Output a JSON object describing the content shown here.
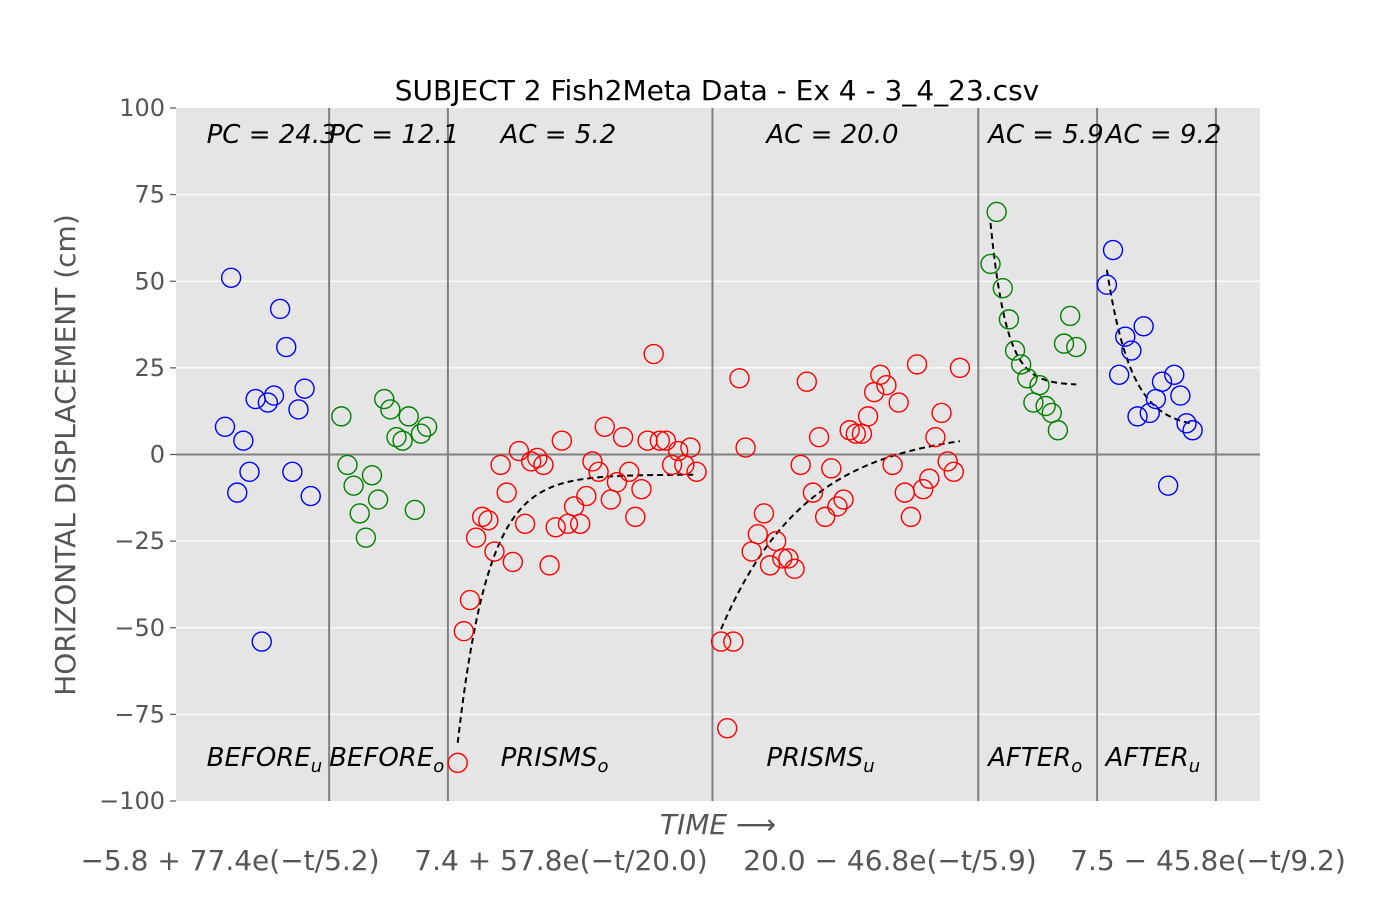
{
  "chart_data": {
    "type": "scatter",
    "title": "SUBJECT 2 Fish2Meta Data - Ex 4 - 3_4_23.csv",
    "ylabel": "HORIZONTAL DISPLACEMENT (cm)",
    "xlabel": "TIME ⟶",
    "ylim": [
      -100,
      100
    ],
    "xlim": [
      0,
      88.5
    ],
    "yticks": [
      100,
      75,
      50,
      25,
      0,
      -25,
      -50,
      -75,
      -100
    ],
    "ytick_labels": [
      "100",
      "75",
      "50",
      "25",
      "0",
      "−25",
      "−50",
      "−75",
      "−100"
    ],
    "grid": true,
    "phase_boundaries": [
      12.5,
      22.2,
      43.8,
      65.5,
      75.2,
      84.9
    ],
    "formulas": [
      "−5.8 + 77.4e(−t/5.2)",
      "7.4 + 57.8e(−t/20.0)",
      "20.0 − 46.8e(−t/5.9)",
      "7.5 − 45.8e(−t/9.2)"
    ],
    "phases": [
      {
        "label": "BEFORE",
        "sub": "u",
        "metric_label": "PC = 24.3",
        "color": "#0000ff",
        "label_x": 2.5,
        "points": [
          [
            4,
            8
          ],
          [
            4.5,
            51
          ],
          [
            5,
            -11
          ],
          [
            5.5,
            4
          ],
          [
            6,
            -5
          ],
          [
            6.5,
            16
          ],
          [
            7,
            -54
          ],
          [
            7.5,
            15
          ],
          [
            8,
            17
          ],
          [
            8.5,
            42
          ],
          [
            9,
            31
          ],
          [
            9.5,
            -5
          ],
          [
            10,
            13
          ],
          [
            10.5,
            19
          ],
          [
            11,
            -12
          ]
        ]
      },
      {
        "label": "BEFORE",
        "sub": "o",
        "metric_label": "PC = 12.1",
        "color": "#008000",
        "label_x": 12.5,
        "points": [
          [
            13.5,
            11
          ],
          [
            14,
            -3
          ],
          [
            14.5,
            -9
          ],
          [
            15,
            -17
          ],
          [
            15.5,
            -24
          ],
          [
            16,
            -6
          ],
          [
            16.5,
            -13
          ],
          [
            17,
            16
          ],
          [
            17.5,
            13
          ],
          [
            18,
            5
          ],
          [
            18.5,
            4
          ],
          [
            19,
            11
          ],
          [
            19.5,
            -16
          ],
          [
            20,
            6
          ],
          [
            20.5,
            8
          ]
        ]
      },
      {
        "label": "PRISMS",
        "sub": "o",
        "metric_label": "AC = 5.2",
        "color": "#ff0000",
        "label_x": 26.5,
        "points": [
          [
            23,
            -89
          ],
          [
            23.5,
            -51
          ],
          [
            24,
            -42
          ],
          [
            24.5,
            -24
          ],
          [
            25,
            -18
          ],
          [
            25.5,
            -19
          ],
          [
            26,
            -28
          ],
          [
            26.5,
            -3
          ],
          [
            27,
            -11
          ],
          [
            27.5,
            -31
          ],
          [
            28,
            1
          ],
          [
            28.5,
            -20
          ],
          [
            29,
            -2
          ],
          [
            29.5,
            -1
          ],
          [
            30,
            -3
          ],
          [
            30.5,
            -32
          ],
          [
            31,
            -21
          ],
          [
            31.5,
            4
          ],
          [
            32,
            -20
          ],
          [
            32.5,
            -15
          ],
          [
            33,
            -20
          ],
          [
            33.5,
            -12
          ],
          [
            34,
            -2
          ],
          [
            34.5,
            -5
          ],
          [
            35,
            8
          ],
          [
            35.5,
            -13
          ],
          [
            36,
            -8
          ],
          [
            36.5,
            5
          ],
          [
            37,
            -5
          ],
          [
            37.5,
            -18
          ],
          [
            38,
            -10
          ],
          [
            38.5,
            4
          ],
          [
            39,
            29
          ],
          [
            39.5,
            4
          ],
          [
            40,
            4
          ],
          [
            40.5,
            -3
          ],
          [
            41,
            1
          ],
          [
            41.5,
            -3
          ],
          [
            42,
            2
          ],
          [
            42.5,
            -5
          ]
        ]
      },
      {
        "label": "PRISMS",
        "sub": "u",
        "metric_label": "AC = 20.0",
        "color": "#ff0000",
        "label_x": 48.2,
        "points": [
          [
            44.5,
            -54
          ],
          [
            45,
            -79
          ],
          [
            45.5,
            -54
          ],
          [
            46,
            22
          ],
          [
            46.5,
            2
          ],
          [
            47,
            -28
          ],
          [
            47.5,
            -23
          ],
          [
            48,
            -17
          ],
          [
            48.5,
            -32
          ],
          [
            49,
            -25
          ],
          [
            49.5,
            -30
          ],
          [
            50,
            -30
          ],
          [
            50.5,
            -33
          ],
          [
            51,
            -3
          ],
          [
            51.5,
            21
          ],
          [
            52,
            -11
          ],
          [
            52.5,
            5
          ],
          [
            53,
            -18
          ],
          [
            53.5,
            -4
          ],
          [
            54,
            -15
          ],
          [
            54.5,
            -13
          ],
          [
            55,
            7
          ],
          [
            55.5,
            6
          ],
          [
            56,
            6
          ],
          [
            56.5,
            11
          ],
          [
            57,
            18
          ],
          [
            57.5,
            23
          ],
          [
            58,
            20
          ],
          [
            58.5,
            -3
          ],
          [
            59,
            15
          ],
          [
            59.5,
            -11
          ],
          [
            60,
            -18
          ],
          [
            60.5,
            26
          ],
          [
            61,
            -10
          ],
          [
            61.5,
            -7
          ],
          [
            62,
            5
          ],
          [
            62.5,
            12
          ],
          [
            63,
            -2
          ],
          [
            63.5,
            -5
          ],
          [
            64,
            25
          ]
        ]
      },
      {
        "label": "AFTER",
        "sub": "o",
        "metric_label": "AC = 5.9",
        "color": "#008000",
        "label_x": 66.3,
        "points": [
          [
            66.5,
            55
          ],
          [
            67,
            70
          ],
          [
            67.5,
            48
          ],
          [
            68,
            39
          ],
          [
            68.5,
            30
          ],
          [
            69,
            26
          ],
          [
            69.5,
            22
          ],
          [
            70,
            15
          ],
          [
            70.5,
            20
          ],
          [
            71,
            14
          ],
          [
            71.5,
            12
          ],
          [
            72,
            7
          ],
          [
            72.5,
            32
          ],
          [
            73,
            40
          ],
          [
            73.5,
            31
          ]
        ]
      },
      {
        "label": "AFTER",
        "sub": "u",
        "metric_label": "AC = 9.2",
        "color": "#0000ff",
        "label_x": 75.9,
        "points": [
          [
            76,
            49
          ],
          [
            76.5,
            59
          ],
          [
            77,
            23
          ],
          [
            77.5,
            34
          ],
          [
            78,
            30
          ],
          [
            78.5,
            11
          ],
          [
            79,
            37
          ],
          [
            79.5,
            12
          ],
          [
            80,
            16
          ],
          [
            80.5,
            21
          ],
          [
            81,
            -9
          ],
          [
            81.5,
            23
          ],
          [
            82,
            17
          ],
          [
            82.5,
            9
          ],
          [
            83,
            7
          ]
        ]
      }
    ],
    "fit_curves": [
      {
        "x0": 23,
        "x1": 42.5,
        "a": -5.8,
        "b": -77.4,
        "tau": 2.5
      },
      {
        "x0": 44.5,
        "x1": 64,
        "a": 7.4,
        "b": -57.8,
        "tau": 7.0
      },
      {
        "x0": 66.5,
        "x1": 73.5,
        "a": 20.0,
        "b": 46.8,
        "tau": 1.3
      },
      {
        "x0": 76,
        "x1": 83,
        "a": 7.5,
        "b": 45.8,
        "tau": 2.0
      }
    ]
  }
}
